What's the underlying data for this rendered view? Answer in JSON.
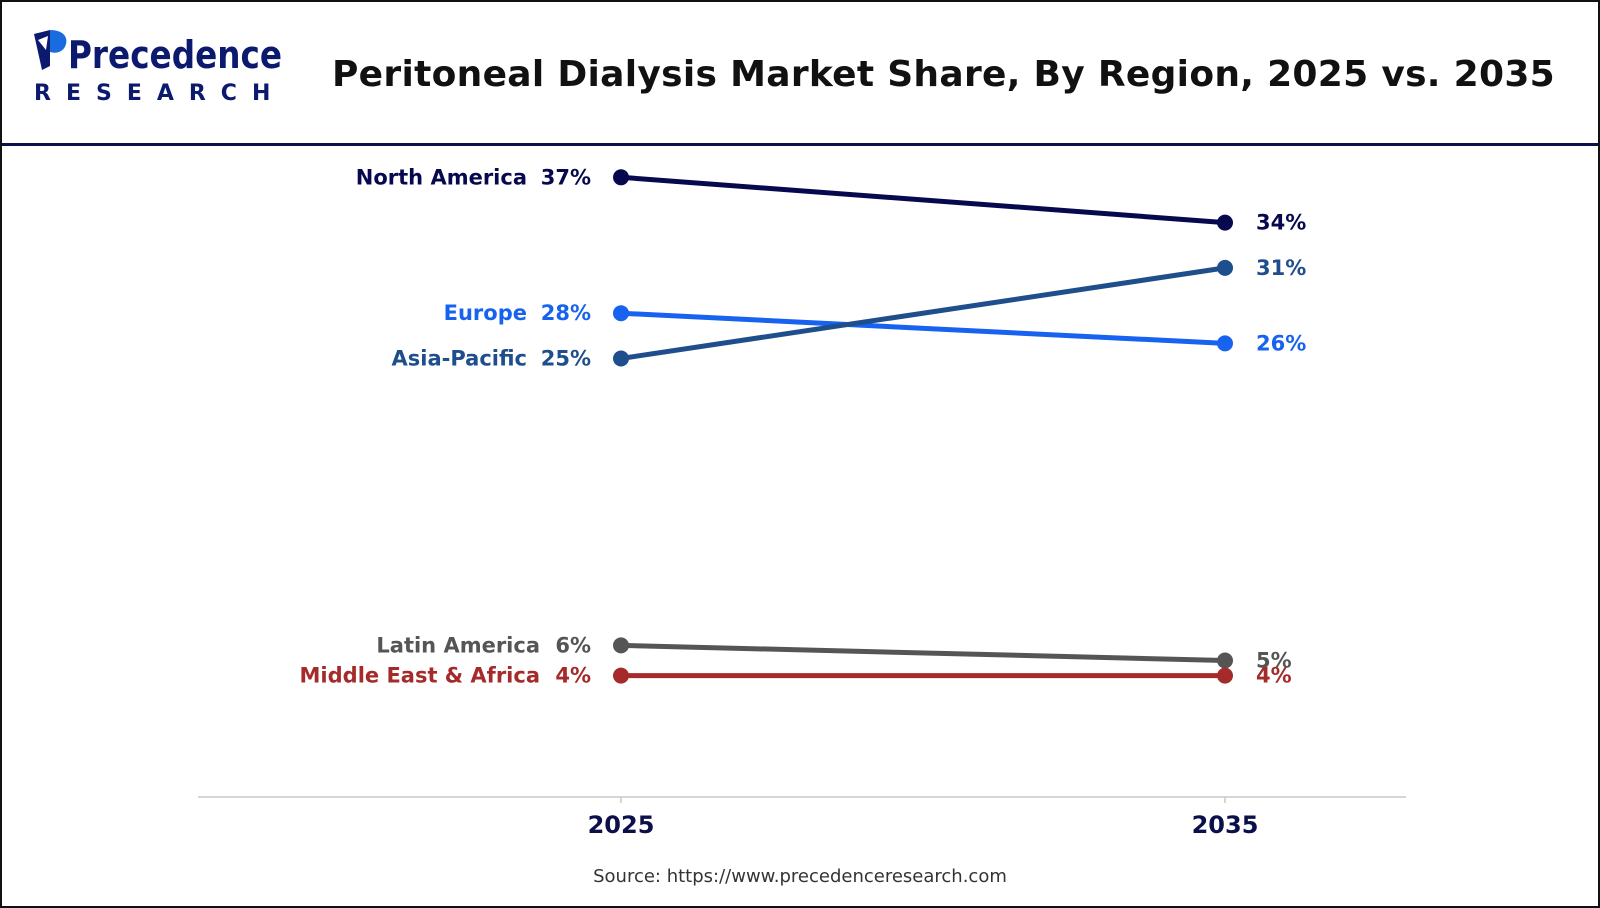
{
  "header": {
    "title": "Peritoneal Dialysis Market Share, By Region, 2025 vs. 2035",
    "logo": {
      "brand_top": "Precedence",
      "brand_bottom": "RESEARCH",
      "icon": "leaf-p-logo-icon"
    }
  },
  "source": "Source: https://www.precedenceresearch.com",
  "colors": {
    "north_america": "#07094f",
    "europe": "#1763f0",
    "asia_pacific": "#1f4e8c",
    "latin_america": "#555555",
    "middle_east_africa": "#a52a2a",
    "axis_labels": "#0b0f4a",
    "header_rule": "#0b0f4a"
  },
  "chart_data": {
    "type": "line",
    "title": "Peritoneal Dialysis Market Share, By Region, 2025 vs. 2035",
    "x": [
      "2025",
      "2035"
    ],
    "xlabel": "",
    "ylabel": "",
    "unit": "%",
    "grid": false,
    "legend": "none",
    "series": [
      {
        "name": "North America",
        "values": [
          37,
          34
        ],
        "color": "#07094f"
      },
      {
        "name": "Europe",
        "values": [
          28,
          26
        ],
        "color": "#1763f0"
      },
      {
        "name": "Asia-Pacific",
        "values": [
          25,
          31
        ],
        "color": "#1f4e8c"
      },
      {
        "name": "Latin America",
        "values": [
          6,
          5
        ],
        "color": "#555555"
      },
      {
        "name": "Middle East & Africa",
        "values": [
          4,
          4
        ],
        "color": "#a52a2a"
      }
    ]
  }
}
